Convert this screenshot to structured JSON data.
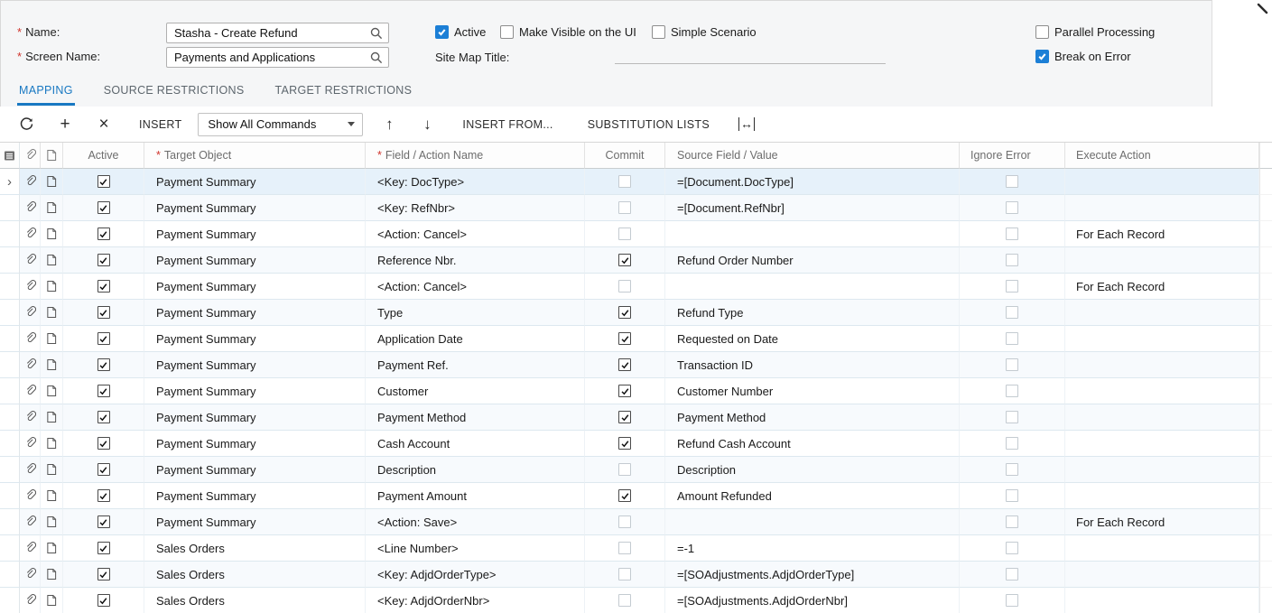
{
  "colors": {
    "accent_blue": "#1c7fd6",
    "tab_active_blue": "#1878c2",
    "selected_row": "#e6f1fa",
    "selected_cell": "#cfe3f3",
    "alt_row": "#f7fafd",
    "required_red": "#d0342c",
    "panel_gray": "#f5f6f7"
  },
  "form": {
    "name": {
      "required_mark": "*",
      "label": "Name:",
      "value": "Stasha - Create Refund"
    },
    "screen_name": {
      "required_mark": "*",
      "label": "Screen Name:",
      "value": "Payments and Applications"
    },
    "site_map_title": {
      "label": "Site Map Title:",
      "value": ""
    },
    "checkboxes": {
      "active": {
        "label": "Active",
        "checked": true
      },
      "make_visible": {
        "label": "Make Visible on the UI",
        "checked": false
      },
      "simple_scenario": {
        "label": "Simple Scenario",
        "checked": false
      },
      "parallel_processing": {
        "label": "Parallel Processing",
        "checked": false
      },
      "break_on_error": {
        "label": "Break on Error",
        "checked": true
      }
    }
  },
  "tabs": [
    {
      "label": "MAPPING",
      "active": true
    },
    {
      "label": "SOURCE RESTRICTIONS",
      "active": false
    },
    {
      "label": "TARGET RESTRICTIONS",
      "active": false
    }
  ],
  "toolbar": {
    "icons": {
      "refresh": "refresh-icon",
      "add": "add-icon",
      "delete": "delete-icon",
      "move_up": "move-up-icon",
      "move_down": "move-down-icon",
      "fit_width": "fit-width-icon"
    },
    "glyphs": {
      "add": "+",
      "delete": "×",
      "up": "↑",
      "down": "↓",
      "fit": "↔"
    },
    "insert_label": "INSERT",
    "commands_dropdown": {
      "value": "Show All Commands"
    },
    "insert_from_label": "INSERT FROM...",
    "substitution_lists_label": "SUBSTITUTION LISTS"
  },
  "grid": {
    "icon_columns": [
      "row-settings-icon",
      "attachment-icon",
      "note-icon"
    ],
    "columns": [
      {
        "key": "active",
        "label": "Active",
        "required": false
      },
      {
        "key": "target",
        "label": "Target Object",
        "required": true
      },
      {
        "key": "field",
        "label": "Field / Action Name",
        "required": true
      },
      {
        "key": "commit",
        "label": "Commit",
        "required": false
      },
      {
        "key": "source",
        "label": "Source Field / Value",
        "required": false
      },
      {
        "key": "ignore",
        "label": "Ignore Error",
        "required": false
      },
      {
        "key": "execute",
        "label": "Execute Action",
        "required": false
      }
    ],
    "rows": [
      {
        "selected": true,
        "active": true,
        "target": "Payment Summary",
        "field": "<Key: DocType>",
        "commit": false,
        "commit_enabled": false,
        "source": "=[Document.DocType]",
        "ignore_error": false,
        "execute": ""
      },
      {
        "selected": false,
        "active": true,
        "target": "Payment Summary",
        "field": "<Key: RefNbr>",
        "commit": false,
        "commit_enabled": false,
        "source": "=[Document.RefNbr]",
        "ignore_error": false,
        "execute": ""
      },
      {
        "selected": false,
        "active": true,
        "target": "Payment Summary",
        "field": "<Action: Cancel>",
        "commit": false,
        "commit_enabled": false,
        "source": "",
        "ignore_error": false,
        "execute": "For Each Record"
      },
      {
        "selected": false,
        "active": true,
        "target": "Payment Summary",
        "field": "Reference Nbr.",
        "commit": true,
        "commit_enabled": true,
        "source": "Refund Order Number",
        "ignore_error": false,
        "execute": ""
      },
      {
        "selected": false,
        "active": true,
        "target": "Payment Summary",
        "field": "<Action: Cancel>",
        "commit": false,
        "commit_enabled": false,
        "source": "",
        "ignore_error": false,
        "execute": "For Each Record"
      },
      {
        "selected": false,
        "active": true,
        "target": "Payment Summary",
        "field": "Type",
        "commit": true,
        "commit_enabled": true,
        "source": "Refund Type",
        "ignore_error": false,
        "execute": ""
      },
      {
        "selected": false,
        "active": true,
        "target": "Payment Summary",
        "field": "Application Date",
        "commit": true,
        "commit_enabled": true,
        "source": "Requested on Date",
        "ignore_error": false,
        "execute": ""
      },
      {
        "selected": false,
        "active": true,
        "target": "Payment Summary",
        "field": "Payment Ref.",
        "commit": true,
        "commit_enabled": true,
        "source": "Transaction ID",
        "ignore_error": false,
        "execute": ""
      },
      {
        "selected": false,
        "active": true,
        "target": "Payment Summary",
        "field": "Customer",
        "commit": true,
        "commit_enabled": true,
        "source": "Customer Number",
        "ignore_error": false,
        "execute": ""
      },
      {
        "selected": false,
        "active": true,
        "target": "Payment Summary",
        "field": "Payment Method",
        "commit": true,
        "commit_enabled": true,
        "source": "Payment Method",
        "ignore_error": false,
        "execute": ""
      },
      {
        "selected": false,
        "active": true,
        "target": "Payment Summary",
        "field": "Cash Account",
        "commit": true,
        "commit_enabled": true,
        "source": "Refund Cash Account",
        "ignore_error": false,
        "execute": ""
      },
      {
        "selected": false,
        "active": true,
        "target": "Payment Summary",
        "field": "Description",
        "commit": false,
        "commit_enabled": true,
        "source": "Description",
        "ignore_error": false,
        "execute": ""
      },
      {
        "selected": false,
        "active": true,
        "target": "Payment Summary",
        "field": "Payment Amount",
        "commit": true,
        "commit_enabled": true,
        "source": "Amount Refunded",
        "ignore_error": false,
        "execute": ""
      },
      {
        "selected": false,
        "active": true,
        "target": "Payment Summary",
        "field": "<Action: Save>",
        "commit": false,
        "commit_enabled": false,
        "source": "",
        "ignore_error": false,
        "execute": "For Each Record"
      },
      {
        "selected": false,
        "active": true,
        "target": "Sales Orders",
        "field": "<Line Number>",
        "commit": false,
        "commit_enabled": false,
        "source": "=-1",
        "ignore_error": false,
        "execute": ""
      },
      {
        "selected": false,
        "active": true,
        "target": "Sales Orders",
        "field": "<Key: AdjdOrderType>",
        "commit": false,
        "commit_enabled": false,
        "source": "=[SOAdjustments.AdjdOrderType]",
        "ignore_error": false,
        "execute": ""
      },
      {
        "selected": false,
        "active": true,
        "target": "Sales Orders",
        "field": "<Key: AdjdOrderNbr>",
        "commit": false,
        "commit_enabled": false,
        "source": "=[SOAdjustments.AdjdOrderNbr]",
        "ignore_error": false,
        "execute": ""
      }
    ]
  }
}
